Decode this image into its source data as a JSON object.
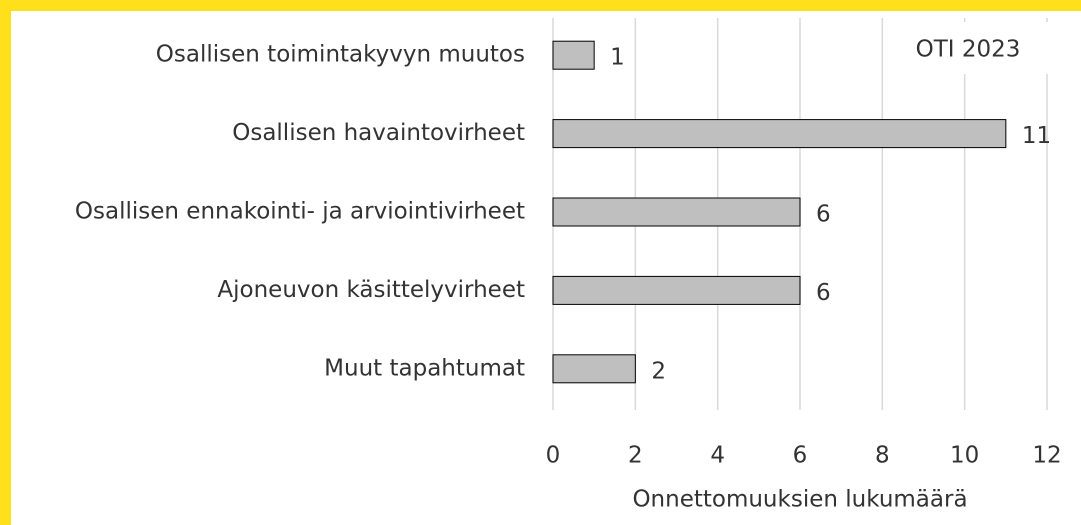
{
  "chart_data": {
    "type": "bar",
    "orientation": "horizontal",
    "annotation": "OTI 2023",
    "xlabel": "Onnettomuuksien lukumäärä",
    "categories": [
      "Osallisen toimintakyvyn muutos",
      "Osallisen havaintovirheet",
      "Osallisen ennakointi- ja arviointivirheet",
      "Ajoneuvon käsittelyvirheet",
      "Muut tapahtumat"
    ],
    "values": [
      1,
      11,
      6,
      6,
      2
    ],
    "color": "#bfbfbf",
    "xlim": [
      0,
      12
    ],
    "xticks": [
      0,
      2,
      4,
      6,
      8,
      10,
      12
    ],
    "grid": true
  }
}
